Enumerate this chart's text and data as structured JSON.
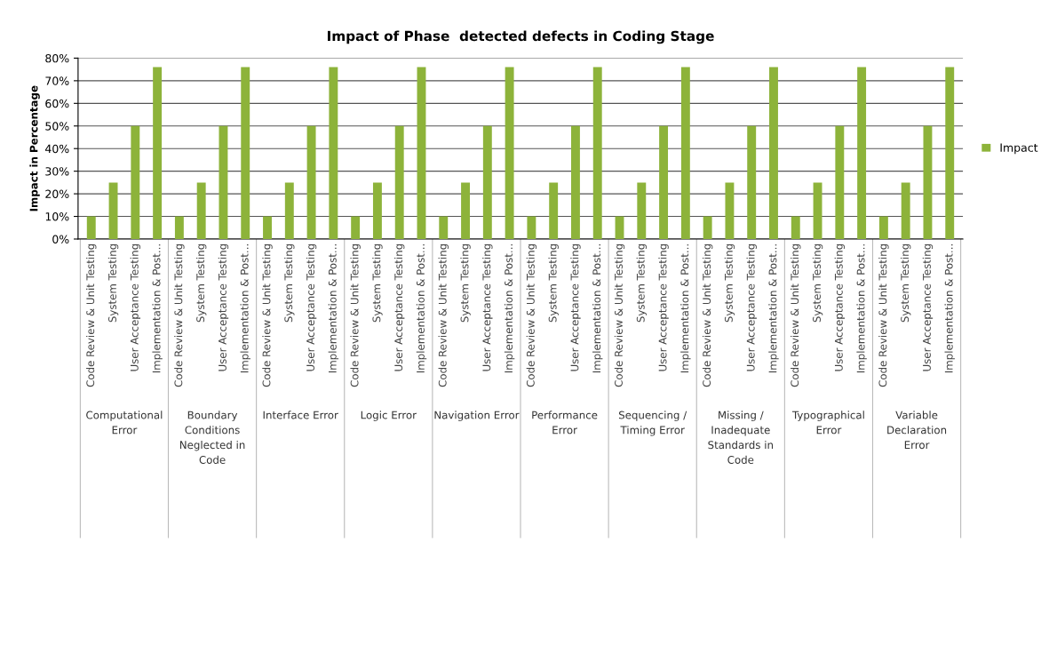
{
  "chart_data": {
    "type": "bar",
    "title": "Impact of Phase  detected defects in Coding Stage",
    "ylabel": "Impact in Percentage",
    "categories": [
      "Code Review & Unit Testing",
      "System Testing",
      "User Acceptance Testing",
      "Implementation & Post...",
      "Code Review & Unit Testing",
      "System Testing",
      "User Acceptance Testing",
      "Implementation & Post...",
      "Code Review & Unit Testing",
      "System Testing",
      "User Acceptance Testing",
      "Implementation & Post...",
      "Code Review & Unit Testing",
      "System Testing",
      "User Acceptance Testing",
      "Implementation & Post...",
      "Code Review & Unit Testing",
      "System Testing",
      "User Acceptance Testing",
      "Implementation & Post...",
      "Code Review & Unit Testing",
      "System Testing",
      "User Acceptance Testing",
      "Implementation & Post...",
      "Code Review & Unit Testing",
      "System Testing",
      "User Acceptance Testing",
      "Implementation & Post...",
      "Code Review & Unit Testing",
      "System Testing",
      "User Acceptance Testing",
      "Implementation & Post...",
      "Code Review & Unit Testing",
      "System Testing",
      "User Acceptance Testing",
      "Implementation & Post...",
      "Code Review & Unit Testing",
      "System Testing",
      "User Acceptance Testing",
      "Implementation & Post..."
    ],
    "series": [
      {
        "name": "Impact",
        "color": "#8db33a",
        "values": [
          10,
          25,
          50,
          76,
          10,
          25,
          50,
          76,
          10,
          25,
          50,
          76,
          10,
          25,
          50,
          76,
          10,
          25,
          50,
          76,
          10,
          25,
          50,
          76,
          10,
          25,
          50,
          76,
          10,
          25,
          50,
          76,
          10,
          25,
          50,
          76,
          10,
          25,
          50,
          76
        ]
      }
    ],
    "annotations": [
      "Computational\nError",
      "Boundary\nConditions\nNeglected in\nCode",
      "Interface Error",
      "Logic Error",
      "Navigation Error",
      "Performance\nError",
      "Sequencing /\nTiming Error",
      "Missing /\nInadequate\nStandards in\nCode",
      "Typographical\nError",
      "Variable\nDeclaration\nError"
    ],
    "ylim": [
      0,
      80
    ],
    "yticks": [
      {
        "value": 0,
        "label": "0%"
      },
      {
        "value": 10,
        "label": "10%"
      },
      {
        "value": 20,
        "label": "20%"
      },
      {
        "value": 30,
        "label": "30%"
      },
      {
        "value": 40,
        "label": "40%"
      },
      {
        "value": 50,
        "label": "50%"
      },
      {
        "value": 60,
        "label": "60%"
      },
      {
        "value": 70,
        "label": "70%"
      },
      {
        "value": 80,
        "label": "80%"
      }
    ],
    "grid": "y",
    "legend": "right"
  }
}
